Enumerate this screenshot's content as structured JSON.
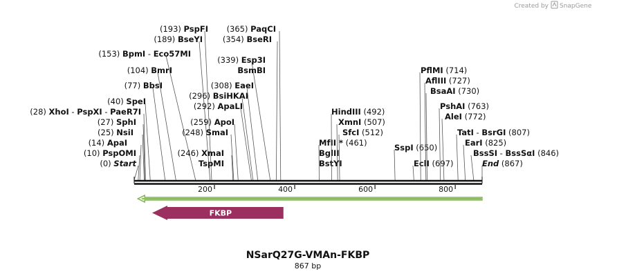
{
  "credit": {
    "prefix": "Created by",
    "brand": "SnapGene"
  },
  "sequence": {
    "name": "NSarQ27G-VMAn-FKBP",
    "length": 867,
    "length_label": "867 bp"
  },
  "axis": {
    "ticks": [
      200,
      400,
      600,
      800
    ],
    "start": 0,
    "end": 867
  },
  "sites": [
    {
      "pos": 0,
      "names": [
        "Start"
      ],
      "style": "italic",
      "pos_first": true
    },
    {
      "pos": 10,
      "names": [
        "PspOMI"
      ],
      "pos_first": true
    },
    {
      "pos": 14,
      "names": [
        "ApaI"
      ],
      "pos_first": true
    },
    {
      "pos": 25,
      "names": [
        "NsiI"
      ],
      "pos_first": true
    },
    {
      "pos": 27,
      "names": [
        "SphI"
      ],
      "pos_first": true
    },
    {
      "pos": 28,
      "names": [
        "XhoI",
        "PspXI",
        "PaeR7I"
      ],
      "pos_first": true
    },
    {
      "pos": 40,
      "names": [
        "SpeI"
      ],
      "pos_first": true
    },
    {
      "pos": 77,
      "names": [
        "BbsI"
      ],
      "pos_first": true
    },
    {
      "pos": 104,
      "names": [
        "BmrI"
      ],
      "pos_first": true
    },
    {
      "pos": 153,
      "names": [
        "BpmI",
        "Eco57MI"
      ],
      "pos_first": true
    },
    {
      "pos": 189,
      "names": [
        "BseYI"
      ],
      "pos_first": true
    },
    {
      "pos": 193,
      "names": [
        "PspFI"
      ],
      "pos_first": true
    },
    {
      "pos": 246,
      "names": [
        "XmaI",
        "TspMI"
      ],
      "pos_first": true,
      "shared_pos": true
    },
    {
      "pos": 248,
      "names": [
        "SmaI"
      ],
      "pos_first": true
    },
    {
      "pos": 259,
      "names": [
        "ApoI"
      ],
      "pos_first": true
    },
    {
      "pos": 292,
      "names": [
        "ApaLI"
      ],
      "pos_first": true
    },
    {
      "pos": 296,
      "names": [
        "BsiHKAI"
      ],
      "pos_first": true
    },
    {
      "pos": 308,
      "names": [
        "EaeI"
      ],
      "pos_first": true
    },
    {
      "pos": 339,
      "names": [
        "Esp3I",
        "BsmBI"
      ],
      "pos_first": true,
      "shared_pos": true
    },
    {
      "pos": 354,
      "names": [
        "BseRI"
      ],
      "pos_first": true
    },
    {
      "pos": 365,
      "names": [
        "PaqCI"
      ],
      "pos_first": true
    },
    {
      "pos": 461,
      "names": [
        "MfII *",
        "BglII",
        "BstYI"
      ],
      "pos_first": false,
      "shared_pos": true
    },
    {
      "pos": 492,
      "names": [
        "HindIII"
      ],
      "pos_first": false
    },
    {
      "pos": 507,
      "names": [
        "XmnI"
      ],
      "pos_first": false
    },
    {
      "pos": 512,
      "names": [
        "SfcI"
      ],
      "pos_first": false
    },
    {
      "pos": 650,
      "names": [
        "SspI"
      ],
      "pos_first": false
    },
    {
      "pos": 697,
      "names": [
        "EclI"
      ],
      "pos_first": false
    },
    {
      "pos": 714,
      "names": [
        "PflMI"
      ],
      "pos_first": false
    },
    {
      "pos": 727,
      "names": [
        "AflIII"
      ],
      "pos_first": false
    },
    {
      "pos": 730,
      "names": [
        "BsaAI"
      ],
      "pos_first": false
    },
    {
      "pos": 763,
      "names": [
        "PshAI"
      ],
      "pos_first": false
    },
    {
      "pos": 772,
      "names": [
        "AleI"
      ],
      "pos_first": false
    },
    {
      "pos": 807,
      "names": [
        "TatI",
        "BsrGI"
      ],
      "pos_first": false
    },
    {
      "pos": 825,
      "names": [
        "EarI"
      ],
      "pos_first": false
    },
    {
      "pos": 846,
      "names": [
        "BssSI",
        "BssSαI"
      ],
      "pos_first": false
    },
    {
      "pos": 867,
      "names": [
        "End"
      ],
      "style": "italic",
      "pos_first": false
    }
  ],
  "features": [
    {
      "name": "FKBP",
      "start": 40,
      "end": 365,
      "direction": "reverse",
      "color": "#9b2f5f"
    }
  ],
  "orf": {
    "start": 40,
    "end": 867,
    "direction": "reverse",
    "color": "#6ca83f",
    "fill": "#e9f7c8"
  },
  "colors": {
    "backbone": "#111111",
    "leader": "#555555",
    "credit": "#9a9a9a"
  }
}
